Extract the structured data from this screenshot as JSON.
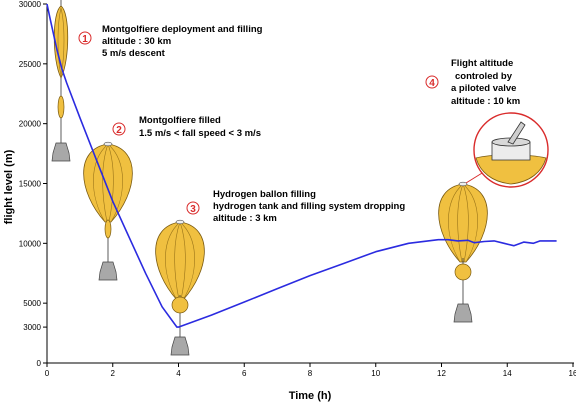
{
  "chart_data": {
    "type": "line",
    "xlabel": "Time (h)",
    "ylabel": "flight level (m)",
    "xlim": [
      0,
      16
    ],
    "ylim": [
      0,
      30000
    ],
    "x_ticks": [
      0,
      2,
      4,
      6,
      8,
      10,
      12,
      14,
      16
    ],
    "y_ticks": [
      0,
      3000,
      5000,
      10000,
      15000,
      20000,
      25000,
      30000
    ],
    "grid": false,
    "line_color": "#2b2be0",
    "series": [
      {
        "x": [
          0,
          0.1,
          0.3,
          0.45,
          0.6,
          1.0,
          1.5,
          2.0,
          2.5,
          3.0,
          3.5,
          3.95,
          4.0,
          5,
          6,
          7,
          8,
          9,
          10,
          11,
          11.9,
          12.2,
          12.5,
          12.8,
          13.0,
          13.3,
          13.6,
          13.9,
          14.2,
          14.5,
          14.8,
          15.0,
          15.5
        ],
        "y": [
          30000,
          28700,
          26200,
          24600,
          23400,
          20500,
          17000,
          13500,
          10500,
          7500,
          4700,
          3000,
          3000,
          4000,
          5100,
          6200,
          7300,
          8300,
          9300,
          10000,
          10300,
          10300,
          10200,
          10250,
          10050,
          10150,
          10200,
          10000,
          9800,
          10100,
          10000,
          10200,
          10200
        ]
      }
    ],
    "annotations": [
      {
        "number": "1",
        "lines": [
          "Montgolfiere deployment and filling",
          "altitude : 30 km",
          "5 m/s descent"
        ]
      },
      {
        "number": "2",
        "lines": [
          "Montgolfiere filled",
          "1.5 m/s < fall speed < 3 m/s"
        ]
      },
      {
        "number": "3",
        "lines": [
          "Hydrogen ballon filling",
          "hydrogen tank and filling system dropping",
          "altitude : 3 km"
        ]
      },
      {
        "number": "4",
        "lines": [
          "Flight altitude",
          "controled by",
          "a piloted valve",
          "altitude : 10 km"
        ]
      }
    ],
    "colors": {
      "balloon_fill": "#f0c040",
      "balloon_stroke": "#7a5a10",
      "gondola_fill": "#a8a8a8",
      "step_number": "#d92b2b"
    }
  }
}
